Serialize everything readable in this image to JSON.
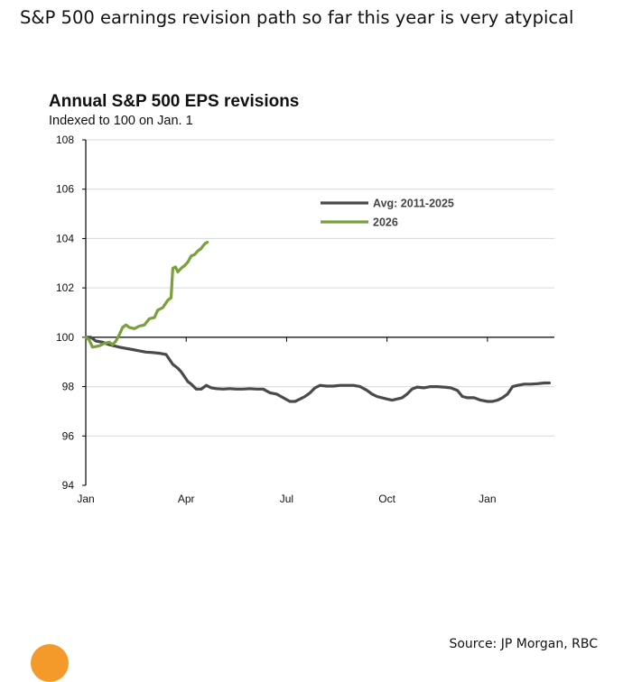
{
  "page": {
    "title": "S&P 500 earnings revision path so far this year is very atypical",
    "source": "Source: JP Morgan, RBC"
  },
  "colors": {
    "avg_line": "#4a4a4c",
    "line_2026": "#79a03a",
    "grid": "#d9d9d9",
    "axis": "#000000",
    "logo": "#f39a2a"
  },
  "icons": {
    "logo": "orange-circle-logo"
  },
  "chart_data": {
    "type": "line",
    "title": "Annual S&P 500 EPS revisions",
    "subtitle": "Indexed to 100 on Jan. 1",
    "xlabel": "",
    "ylabel": "",
    "ylim": [
      94,
      108
    ],
    "yticks": [
      94,
      96,
      98,
      100,
      102,
      104,
      106,
      108
    ],
    "xlim": [
      0,
      14
    ],
    "xticks": [
      {
        "label": "Jan",
        "x": 0
      },
      {
        "label": "Apr",
        "x": 3
      },
      {
        "label": "Jul",
        "x": 6
      },
      {
        "label": "Oct",
        "x": 9
      },
      {
        "label": "Jan",
        "x": 12
      }
    ],
    "grid": true,
    "legend_position": "top-right",
    "series": [
      {
        "name": "Avg: 2011-2025",
        "color": "#4a4a4c",
        "points": [
          [
            0,
            100
          ],
          [
            0.15,
            100
          ],
          [
            0.3,
            99.85
          ],
          [
            0.5,
            99.8
          ],
          [
            0.7,
            99.7
          ],
          [
            0.85,
            99.65
          ],
          [
            1.0,
            99.6
          ],
          [
            1.2,
            99.55
          ],
          [
            1.4,
            99.5
          ],
          [
            1.6,
            99.45
          ],
          [
            1.8,
            99.4
          ],
          [
            2.0,
            99.38
          ],
          [
            2.2,
            99.35
          ],
          [
            2.4,
            99.3
          ],
          [
            2.5,
            99.1
          ],
          [
            2.6,
            98.9
          ],
          [
            2.75,
            98.75
          ],
          [
            2.85,
            98.6
          ],
          [
            2.95,
            98.4
          ],
          [
            3.05,
            98.2
          ],
          [
            3.15,
            98.1
          ],
          [
            3.3,
            97.9
          ],
          [
            3.45,
            97.9
          ],
          [
            3.6,
            98.05
          ],
          [
            3.75,
            97.95
          ],
          [
            3.9,
            97.92
          ],
          [
            4.1,
            97.9
          ],
          [
            4.3,
            97.92
          ],
          [
            4.5,
            97.9
          ],
          [
            4.7,
            97.9
          ],
          [
            4.9,
            97.92
          ],
          [
            5.1,
            97.9
          ],
          [
            5.3,
            97.9
          ],
          [
            5.5,
            97.75
          ],
          [
            5.7,
            97.7
          ],
          [
            5.9,
            97.55
          ],
          [
            6.1,
            97.4
          ],
          [
            6.25,
            97.4
          ],
          [
            6.4,
            97.5
          ],
          [
            6.55,
            97.6
          ],
          [
            6.7,
            97.75
          ],
          [
            6.85,
            97.95
          ],
          [
            7.0,
            98.05
          ],
          [
            7.2,
            98.02
          ],
          [
            7.4,
            98.02
          ],
          [
            7.6,
            98.05
          ],
          [
            7.8,
            98.05
          ],
          [
            8.0,
            98.05
          ],
          [
            8.2,
            98.0
          ],
          [
            8.4,
            97.85
          ],
          [
            8.55,
            97.7
          ],
          [
            8.7,
            97.6
          ],
          [
            8.85,
            97.55
          ],
          [
            9.0,
            97.5
          ],
          [
            9.15,
            97.45
          ],
          [
            9.3,
            97.5
          ],
          [
            9.45,
            97.55
          ],
          [
            9.6,
            97.7
          ],
          [
            9.75,
            97.9
          ],
          [
            9.9,
            97.98
          ],
          [
            10.1,
            97.95
          ],
          [
            10.3,
            98.0
          ],
          [
            10.5,
            98.0
          ],
          [
            10.7,
            97.98
          ],
          [
            10.9,
            97.95
          ],
          [
            11.1,
            97.85
          ],
          [
            11.25,
            97.6
          ],
          [
            11.4,
            97.55
          ],
          [
            11.6,
            97.55
          ],
          [
            11.8,
            97.45
          ],
          [
            12.0,
            97.4
          ],
          [
            12.15,
            97.4
          ],
          [
            12.3,
            97.45
          ],
          [
            12.45,
            97.55
          ],
          [
            12.6,
            97.7
          ],
          [
            12.75,
            98.0
          ],
          [
            12.9,
            98.05
          ],
          [
            13.1,
            98.1
          ],
          [
            13.3,
            98.1
          ],
          [
            13.5,
            98.12
          ],
          [
            13.7,
            98.15
          ],
          [
            13.85,
            98.15
          ]
        ]
      },
      {
        "name": "2026",
        "color": "#79a03a",
        "points": [
          [
            0,
            100
          ],
          [
            0.1,
            99.9
          ],
          [
            0.2,
            99.6
          ],
          [
            0.4,
            99.65
          ],
          [
            0.55,
            99.75
          ],
          [
            0.7,
            99.8
          ],
          [
            0.8,
            99.7
          ],
          [
            0.9,
            99.85
          ],
          [
            1.0,
            100.1
          ],
          [
            1.1,
            100.4
          ],
          [
            1.2,
            100.5
          ],
          [
            1.3,
            100.4
          ],
          [
            1.45,
            100.35
          ],
          [
            1.6,
            100.45
          ],
          [
            1.75,
            100.5
          ],
          [
            1.9,
            100.75
          ],
          [
            2.05,
            100.8
          ],
          [
            2.15,
            101.1
          ],
          [
            2.3,
            101.2
          ],
          [
            2.45,
            101.5
          ],
          [
            2.55,
            101.6
          ],
          [
            2.6,
            102.8
          ],
          [
            2.68,
            102.85
          ],
          [
            2.75,
            102.65
          ],
          [
            2.85,
            102.8
          ],
          [
            2.95,
            102.9
          ],
          [
            3.05,
            103.05
          ],
          [
            3.15,
            103.3
          ],
          [
            3.25,
            103.35
          ],
          [
            3.35,
            103.5
          ],
          [
            3.45,
            103.6
          ],
          [
            3.5,
            103.7
          ],
          [
            3.57,
            103.8
          ],
          [
            3.63,
            103.85
          ]
        ]
      }
    ]
  }
}
